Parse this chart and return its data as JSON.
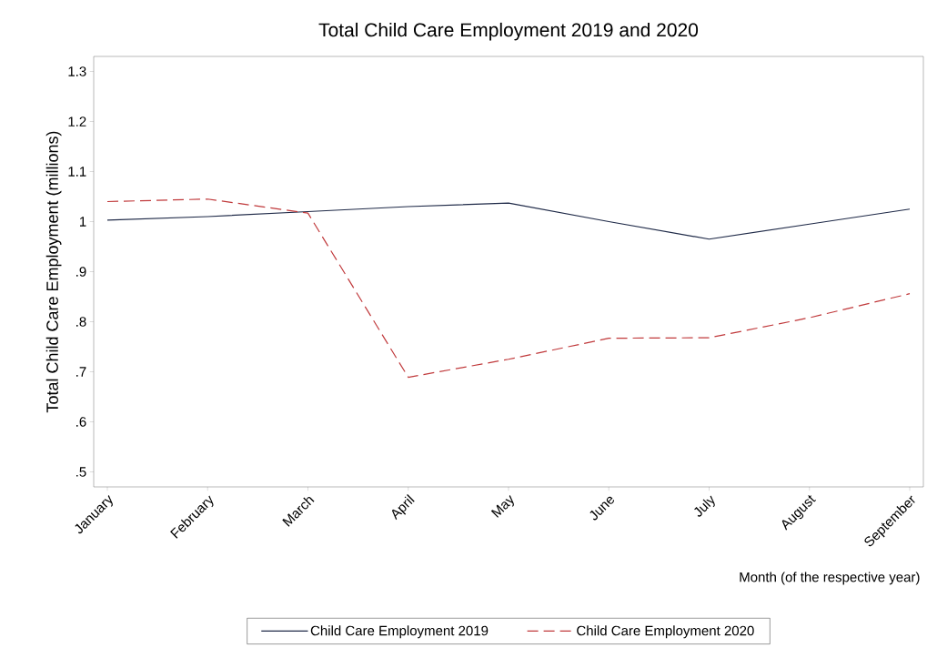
{
  "chart_data": {
    "type": "line",
    "title": "Total Child Care Employment 2019 and 2020",
    "xlabel": "Month (of the respective year)",
    "ylabel": "Total Child Care Employment (millions)",
    "categories": [
      "January",
      "February",
      "March",
      "April",
      "May",
      "June",
      "July",
      "August",
      "September"
    ],
    "series": [
      {
        "name": "Child Care Employment 2019",
        "color": "#1f2a48",
        "line_style": "solid",
        "values": [
          1.003,
          1.01,
          1.02,
          1.03,
          1.037,
          1.0,
          0.965,
          0.995,
          1.025
        ]
      },
      {
        "name": "Child Care Employment 2020",
        "color": "#c0393b",
        "line_style": "dashed",
        "values": [
          1.04,
          1.045,
          1.017,
          0.689,
          0.725,
          0.767,
          0.768,
          0.808,
          0.856
        ]
      }
    ],
    "ylim": [
      0.47,
      1.33
    ],
    "yticks": [
      {
        "value": 0.5,
        "label": ".5"
      },
      {
        "value": 0.6,
        "label": ".6"
      },
      {
        "value": 0.7,
        "label": ".7"
      },
      {
        "value": 0.8,
        "label": ".8"
      },
      {
        "value": 0.9,
        "label": ".9"
      },
      1,
      1.1,
      1.2,
      1.3
    ],
    "grid": false,
    "legend": "bottom",
    "marker": "none"
  }
}
